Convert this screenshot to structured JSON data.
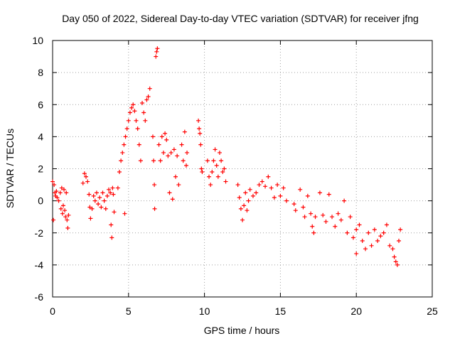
{
  "chart_data": {
    "type": "scatter",
    "title": "Day 050 of 2022, Sidereal Day-to-day VTEC variation (SDTVAR) for receiver jfng",
    "xlabel": "GPS time / hours",
    "ylabel": "SDTVAR / TECUs",
    "xlim": [
      0,
      25
    ],
    "ylim": [
      -6,
      10
    ],
    "xticks": [
      0,
      5,
      10,
      15,
      20,
      25
    ],
    "yticks": [
      -6,
      -4,
      -2,
      0,
      2,
      4,
      6,
      8,
      10
    ],
    "xtick_labels": [
      "0",
      "5",
      "10",
      "15",
      "20",
      "25"
    ],
    "ytick_labels": [
      "-6",
      "-4",
      "-2",
      "0",
      "2",
      "4",
      "6",
      "8",
      "10"
    ],
    "grid": true,
    "marker": "plus",
    "series": [
      {
        "name": "jfng",
        "color": "#ff0000",
        "points": [
          [
            0.0,
            1.2
          ],
          [
            0.05,
            -1.2
          ],
          [
            0.1,
            1.0
          ],
          [
            0.15,
            0.5
          ],
          [
            0.2,
            0.3
          ],
          [
            0.25,
            0.6
          ],
          [
            0.3,
            0.2
          ],
          [
            0.4,
            0.0
          ],
          [
            0.5,
            0.5
          ],
          [
            0.55,
            -0.5
          ],
          [
            0.6,
            0.8
          ],
          [
            0.65,
            -0.8
          ],
          [
            0.7,
            -0.3
          ],
          [
            0.75,
            0.7
          ],
          [
            0.8,
            -0.6
          ],
          [
            0.85,
            -1.0
          ],
          [
            0.9,
            0.5
          ],
          [
            0.95,
            -1.2
          ],
          [
            1.0,
            -1.7
          ],
          [
            1.05,
            -0.9
          ],
          [
            2.0,
            1.1
          ],
          [
            2.1,
            1.7
          ],
          [
            2.2,
            1.5
          ],
          [
            2.3,
            1.2
          ],
          [
            2.4,
            0.4
          ],
          [
            2.45,
            -0.4
          ],
          [
            2.5,
            -1.1
          ],
          [
            2.6,
            -0.5
          ],
          [
            2.7,
            0.3
          ],
          [
            2.8,
            0.0
          ],
          [
            2.9,
            0.5
          ],
          [
            3.0,
            -0.2
          ],
          [
            3.1,
            0.2
          ],
          [
            3.2,
            -0.4
          ],
          [
            3.3,
            0.5
          ],
          [
            3.4,
            0.0
          ],
          [
            3.5,
            -0.5
          ],
          [
            3.6,
            0.3
          ],
          [
            3.7,
            0.7
          ],
          [
            3.8,
            0.5
          ],
          [
            3.85,
            -1.5
          ],
          [
            3.9,
            -2.3
          ],
          [
            3.95,
            0.8
          ],
          [
            4.0,
            0.4
          ],
          [
            4.05,
            -0.7
          ],
          [
            4.3,
            0.8
          ],
          [
            4.4,
            1.8
          ],
          [
            4.5,
            2.5
          ],
          [
            4.6,
            3.0
          ],
          [
            4.7,
            3.5
          ],
          [
            4.75,
            -0.8
          ],
          [
            4.8,
            4.0
          ],
          [
            4.9,
            4.5
          ],
          [
            5.0,
            5.0
          ],
          [
            5.1,
            5.5
          ],
          [
            5.2,
            5.8
          ],
          [
            5.3,
            6.0
          ],
          [
            5.4,
            5.6
          ],
          [
            5.5,
            5.0
          ],
          [
            5.6,
            4.5
          ],
          [
            5.7,
            3.5
          ],
          [
            5.8,
            2.5
          ],
          [
            5.9,
            6.1
          ],
          [
            6.0,
            5.5
          ],
          [
            6.1,
            5.0
          ],
          [
            6.2,
            6.3
          ],
          [
            6.3,
            6.5
          ],
          [
            6.4,
            7.0
          ],
          [
            6.6,
            4.0
          ],
          [
            6.65,
            2.5
          ],
          [
            6.7,
            1.0
          ],
          [
            6.72,
            -0.5
          ],
          [
            6.8,
            9.0
          ],
          [
            6.85,
            9.3
          ],
          [
            6.9,
            9.5
          ],
          [
            7.0,
            3.5
          ],
          [
            7.1,
            2.5
          ],
          [
            7.2,
            4.0
          ],
          [
            7.3,
            3.0
          ],
          [
            7.4,
            4.2
          ],
          [
            7.5,
            3.8
          ],
          [
            7.6,
            2.8
          ],
          [
            7.7,
            0.5
          ],
          [
            7.8,
            3.0
          ],
          [
            7.9,
            0.1
          ],
          [
            8.0,
            3.2
          ],
          [
            8.1,
            1.5
          ],
          [
            8.2,
            2.8
          ],
          [
            8.3,
            1.0
          ],
          [
            8.5,
            3.5
          ],
          [
            8.6,
            2.5
          ],
          [
            8.7,
            4.3
          ],
          [
            8.8,
            2.2
          ],
          [
            8.85,
            3.0
          ],
          [
            9.6,
            5.0
          ],
          [
            9.65,
            4.5
          ],
          [
            9.7,
            4.2
          ],
          [
            9.75,
            3.5
          ],
          [
            9.8,
            2.0
          ],
          [
            9.85,
            1.8
          ],
          [
            10.2,
            2.5
          ],
          [
            10.3,
            1.5
          ],
          [
            10.4,
            1.0
          ],
          [
            10.5,
            1.8
          ],
          [
            10.6,
            2.5
          ],
          [
            10.7,
            3.2
          ],
          [
            10.8,
            2.2
          ],
          [
            10.9,
            1.5
          ],
          [
            11.0,
            3.0
          ],
          [
            11.1,
            2.5
          ],
          [
            11.2,
            1.8
          ],
          [
            11.3,
            2.0
          ],
          [
            11.4,
            1.2
          ],
          [
            12.2,
            1.0
          ],
          [
            12.3,
            0.2
          ],
          [
            12.4,
            -0.5
          ],
          [
            12.5,
            -1.2
          ],
          [
            12.6,
            -0.3
          ],
          [
            12.7,
            0.5
          ],
          [
            12.8,
            -0.6
          ],
          [
            12.9,
            0.0
          ],
          [
            13.0,
            0.7
          ],
          [
            13.2,
            0.3
          ],
          [
            13.4,
            0.5
          ],
          [
            13.6,
            1.0
          ],
          [
            13.8,
            1.2
          ],
          [
            14.0,
            0.9
          ],
          [
            14.2,
            1.5
          ],
          [
            14.4,
            0.8
          ],
          [
            14.6,
            0.2
          ],
          [
            14.8,
            1.0
          ],
          [
            15.0,
            0.3
          ],
          [
            15.2,
            0.8
          ],
          [
            15.4,
            0.0
          ],
          [
            15.9,
            -0.2
          ],
          [
            16.0,
            -0.6
          ],
          [
            16.3,
            0.7
          ],
          [
            16.5,
            -0.4
          ],
          [
            16.6,
            -1.0
          ],
          [
            16.8,
            0.3
          ],
          [
            17.0,
            -0.8
          ],
          [
            17.1,
            -1.6
          ],
          [
            17.2,
            -2.0
          ],
          [
            17.3,
            -1.0
          ],
          [
            17.6,
            0.5
          ],
          [
            17.8,
            -0.9
          ],
          [
            18.0,
            -1.3
          ],
          [
            18.2,
            0.4
          ],
          [
            18.4,
            -1.0
          ],
          [
            18.6,
            -1.6
          ],
          [
            18.8,
            -0.8
          ],
          [
            19.0,
            -1.2
          ],
          [
            19.2,
            0.0
          ],
          [
            19.4,
            -2.0
          ],
          [
            19.6,
            -1.0
          ],
          [
            19.8,
            -2.3
          ],
          [
            20.0,
            -1.8
          ],
          [
            20.0,
            -3.3
          ],
          [
            20.2,
            -1.5
          ],
          [
            20.4,
            -2.5
          ],
          [
            20.6,
            -3.0
          ],
          [
            20.8,
            -2.0
          ],
          [
            21.0,
            -2.8
          ],
          [
            21.2,
            -1.8
          ],
          [
            21.4,
            -2.5
          ],
          [
            21.6,
            -2.2
          ],
          [
            21.8,
            -2.0
          ],
          [
            22.0,
            -1.5
          ],
          [
            22.2,
            -2.8
          ],
          [
            22.4,
            -3.0
          ],
          [
            22.5,
            -3.5
          ],
          [
            22.6,
            -3.8
          ],
          [
            22.7,
            -4.0
          ],
          [
            22.8,
            -2.5
          ],
          [
            22.9,
            -1.8
          ]
        ]
      }
    ]
  }
}
